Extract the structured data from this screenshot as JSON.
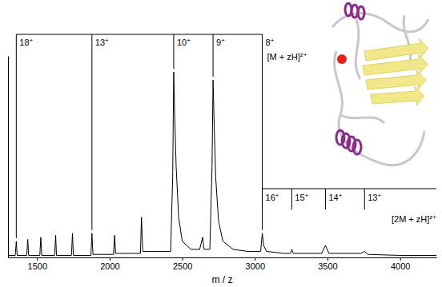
{
  "chart_data": {
    "type": "line",
    "x_label": "m / z",
    "color": "#000000",
    "x": [
      1300,
      1350,
      1357,
      1363,
      1429,
      1436,
      1442,
      1519,
      1526,
      1532,
      1621,
      1628,
      1634,
      1737,
      1744,
      1750,
      1871,
      1878,
      1885,
      2027,
      2034,
      2041,
      2212,
      2219,
      2228,
      2420,
      2434,
      2441,
      2448,
      2458,
      2475,
      2500,
      2560,
      2620,
      2640,
      2650,
      2690,
      2705,
      2712,
      2720,
      2730,
      2750,
      2780,
      2850,
      2950,
      3040,
      3051,
      3060,
      3080,
      3200,
      3245,
      3254,
      3265,
      3460,
      3486,
      3510,
      3730,
      3755,
      3780,
      4000,
      4250
    ],
    "values": [
      1,
      1,
      8,
      1,
      1,
      9,
      1,
      1,
      10,
      1,
      1,
      11,
      1,
      1,
      12,
      1,
      1,
      12,
      1.5,
      1.5,
      11,
      2,
      2,
      20,
      3,
      3,
      40,
      92,
      70,
      45,
      20,
      8,
      4,
      4,
      10,
      4,
      4,
      45,
      88,
      65,
      40,
      18,
      8,
      4,
      3,
      3,
      12,
      6,
      3,
      2,
      2,
      4,
      2,
      2,
      6,
      2,
      2,
      3,
      1.5,
      1,
      1
    ],
    "xlim": [
      1300,
      4250
    ],
    "xticks": [
      1500,
      2000,
      2500,
      3000,
      3500,
      4000
    ],
    "ylim": [
      0,
      100
    ],
    "tick_labels": "x",
    "annotations": [
      {
        "label": "[M + zH]z+",
        "peaks": [
          {
            "label": "18+",
            "x": 1357
          },
          {
            "label": "13+",
            "x": 1878
          },
          {
            "label": "10+",
            "x": 2441
          },
          {
            "label": "9+",
            "x": 2712
          },
          {
            "label": "8+",
            "x": 3051
          }
        ]
      },
      {
        "label": "[2M + zH]z+",
        "peaks": [
          {
            "label": "16+",
            "x": 3051
          },
          {
            "label": "15+",
            "x": 3254
          },
          {
            "label": "14+",
            "x": 3486
          },
          {
            "label": "13+",
            "x": 3755
          }
        ]
      }
    ]
  }
}
